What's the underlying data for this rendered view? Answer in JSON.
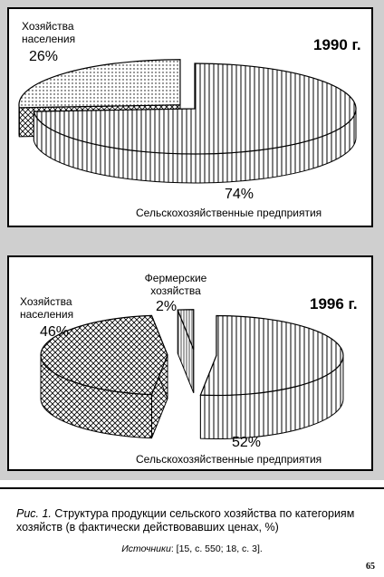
{
  "chart_data": [
    {
      "type": "pie",
      "title": "1990 г.",
      "slices": [
        {
          "label_lines": [
            "Хозяйства",
            "населения"
          ],
          "value": 26,
          "value_label": "26%"
        },
        {
          "label_lines": [
            "Сельскохозяйственные предприятия"
          ],
          "value": 74,
          "value_label": "74%"
        }
      ]
    },
    {
      "type": "pie",
      "title": "1996 г.",
      "slices": [
        {
          "label_lines": [
            "Хозяйства",
            "населения"
          ],
          "value": 46,
          "value_label": "46%"
        },
        {
          "label_lines": [
            "Фермерские",
            "хозяйства"
          ],
          "value": 2,
          "value_label": "2%"
        },
        {
          "label_lines": [
            "Сельскохозяйственные предприятия"
          ],
          "value": 52,
          "value_label": "52%"
        }
      ]
    }
  ],
  "caption": {
    "figure_label": "Рис. 1.",
    "line1": "Структура продукции сельского хозяйства по категориям",
    "line2": "хозяйств (в фактически действовавших ценах, %)",
    "sources_label": "Источники",
    "sources_text": ": [15, с. 550; 18, с. 3]."
  },
  "page_number": "65"
}
